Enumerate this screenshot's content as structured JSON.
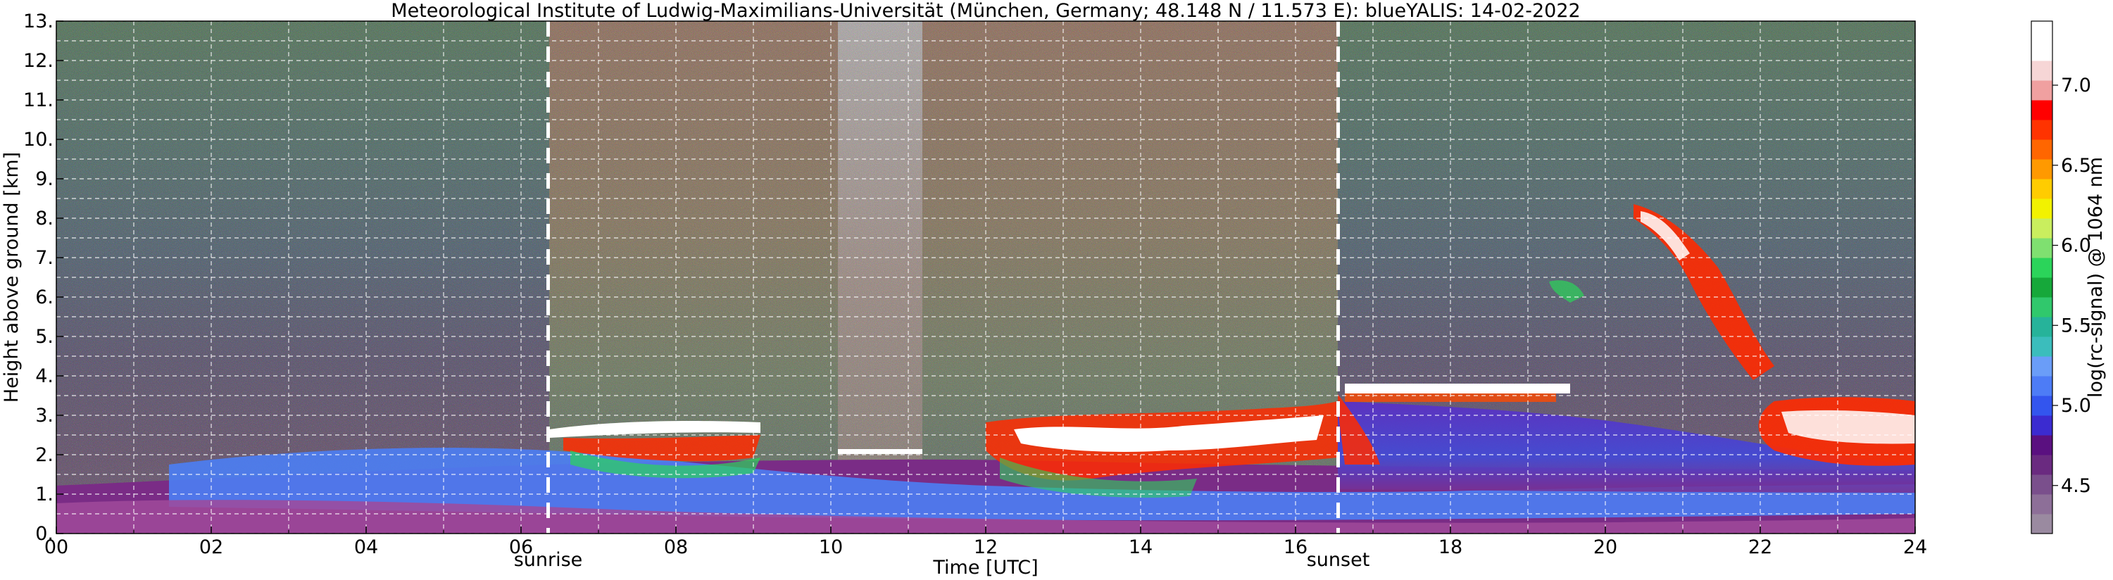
{
  "chart_data": {
    "type": "heatmap",
    "title": "Meteorological Institute of Ludwig-Maximilians-Universität (München, Germany; 48.148 N / 11.573 E):     blueYALIS: 14-02-2022",
    "xlabel": "Time [UTC]",
    "ylabel": "Height above ground [km]",
    "xlim": [
      0,
      24
    ],
    "ylim": [
      0,
      13
    ],
    "x_ticks": [
      "00",
      "02",
      "04",
      "06",
      "08",
      "10",
      "12",
      "14",
      "16",
      "18",
      "20",
      "22",
      "24"
    ],
    "y_ticks": [
      "0.",
      "1.",
      "2.",
      "3.",
      "4.",
      "5.",
      "6.",
      "7.",
      "8.",
      "9.",
      "10.",
      "11.",
      "12.",
      "13."
    ],
    "grid": true,
    "events": [
      {
        "label": "sunrise",
        "time": 6.35
      },
      {
        "label": "sunset",
        "time": 16.55
      }
    ],
    "colorbar": {
      "label": "log(rc-signal) @ 1064 nm",
      "range": [
        4.2,
        7.4
      ],
      "ticks": [
        {
          "value": 4.5,
          "label": "4.5"
        },
        {
          "value": 5.0,
          "label": "5.0"
        },
        {
          "value": 5.5,
          "label": "5.5"
        },
        {
          "value": 6.0,
          "label": "6.0"
        },
        {
          "value": 6.5,
          "label": "6.5"
        },
        {
          "value": 7.0,
          "label": "7.0"
        }
      ],
      "colors": [
        "#9a8aa0",
        "#8d6f98",
        "#7a4f8c",
        "#6a2a80",
        "#5a1080",
        "#3b2bd0",
        "#3355ee",
        "#4d7cf6",
        "#6a9df8",
        "#3bbdbc",
        "#26b39a",
        "#30c86c",
        "#16a83a",
        "#2bd45a",
        "#7fe070",
        "#c9ee5e",
        "#f2f200",
        "#ffcc00",
        "#ff9900",
        "#ff6600",
        "#ff3300",
        "#ff0000",
        "#f0a0a0",
        "#f6d6d6",
        "#ffffff",
        "#ffffff"
      ]
    }
  }
}
